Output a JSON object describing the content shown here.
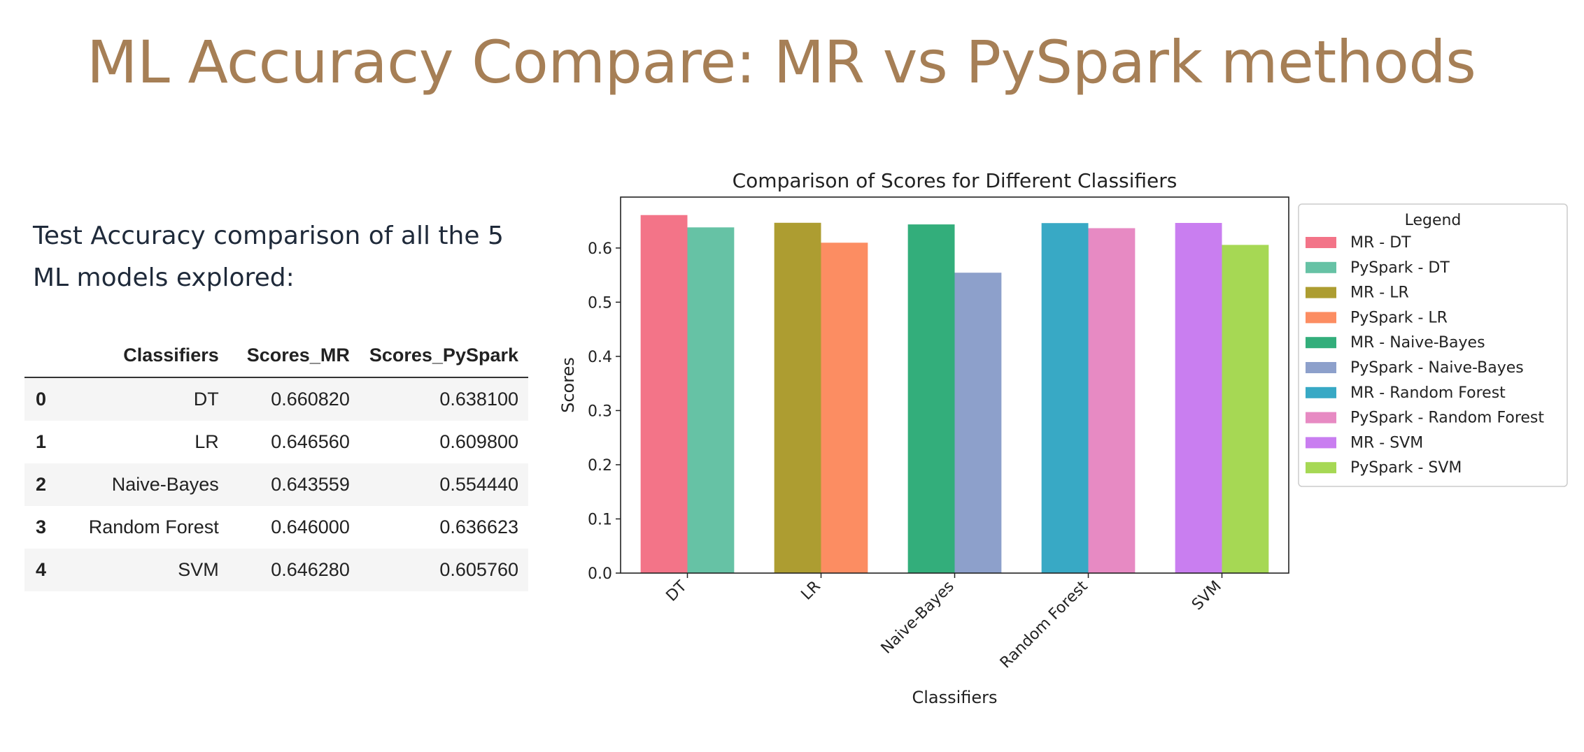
{
  "slide": {
    "title": "ML Accuracy Compare: MR vs PySpark methods",
    "description_lines": [
      "Test Accuracy comparison of all the 5",
      "ML models explored:"
    ]
  },
  "table": {
    "headers": [
      "",
      "Classifiers",
      "Scores_MR",
      "Scores_PySpark"
    ],
    "rows": [
      {
        "index": "0",
        "classifier": "DT",
        "mr": "0.660820",
        "pyspark": "0.638100"
      },
      {
        "index": "1",
        "classifier": "LR",
        "mr": "0.646560",
        "pyspark": "0.609800"
      },
      {
        "index": "2",
        "classifier": "Naive-Bayes",
        "mr": "0.643559",
        "pyspark": "0.554440"
      },
      {
        "index": "3",
        "classifier": "Random Forest",
        "mr": "0.646000",
        "pyspark": "0.636623"
      },
      {
        "index": "4",
        "classifier": "SVM",
        "mr": "0.646280",
        "pyspark": "0.605760"
      }
    ]
  },
  "chart_data": {
    "type": "bar",
    "title": "Comparison of Scores for Different Classifiers",
    "xlabel": "Classifiers",
    "ylabel": "Scores",
    "categories": [
      "DT",
      "LR",
      "Naive-Bayes",
      "Random Forest",
      "SVM"
    ],
    "ylim": [
      0,
      0.694
    ],
    "yticks": [
      0.0,
      0.1,
      0.2,
      0.3,
      0.4,
      0.5,
      0.6
    ],
    "ytick_labels": [
      "0.0",
      "0.1",
      "0.2",
      "0.3",
      "0.4",
      "0.5",
      "0.6"
    ],
    "grid": false,
    "legend_title": "Legend",
    "legend_position": "outside right",
    "bars": [
      {
        "category": "DT",
        "series": "MR",
        "label": "MR - DT",
        "value": 0.66082,
        "color": "#f37488"
      },
      {
        "category": "DT",
        "series": "PySpark",
        "label": "PySpark - DT",
        "value": 0.6381,
        "color": "#66c2a5"
      },
      {
        "category": "LR",
        "series": "MR",
        "label": "MR - LR",
        "value": 0.64656,
        "color": "#ad9d31"
      },
      {
        "category": "LR",
        "series": "PySpark",
        "label": "PySpark - LR",
        "value": 0.6098,
        "color": "#fc8d62"
      },
      {
        "category": "Naive-Bayes",
        "series": "MR",
        "label": "MR - Naive-Bayes",
        "value": 0.643559,
        "color": "#33ae7b"
      },
      {
        "category": "Naive-Bayes",
        "series": "PySpark",
        "label": "PySpark - Naive-Bayes",
        "value": 0.55444,
        "color": "#8da0cb"
      },
      {
        "category": "Random Forest",
        "series": "MR",
        "label": "MR - Random Forest",
        "value": 0.646,
        "color": "#38a9c5"
      },
      {
        "category": "Random Forest",
        "series": "PySpark",
        "label": "PySpark - Random Forest",
        "value": 0.636623,
        "color": "#e78ac3"
      },
      {
        "category": "SVM",
        "series": "MR",
        "label": "MR - SVM",
        "value": 0.64628,
        "color": "#c97ef0"
      },
      {
        "category": "SVM",
        "series": "PySpark",
        "label": "PySpark - SVM",
        "value": 0.60576,
        "color": "#a6d854"
      }
    ]
  }
}
